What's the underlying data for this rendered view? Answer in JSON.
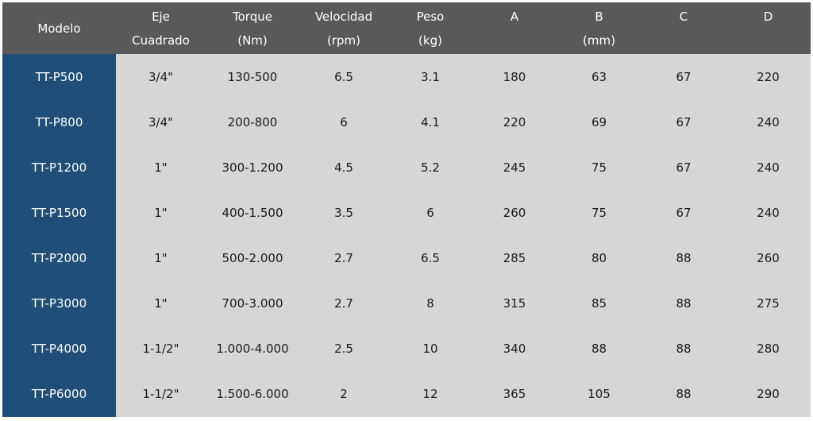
{
  "colors": {
    "header_bg": "#595959",
    "model_bg": "#1f4e79",
    "body_bg": "#d6d6d6"
  },
  "header": {
    "modelo": "Modelo",
    "eje": [
      "Eje",
      "Cuadrado"
    ],
    "torque": [
      "Torque",
      "(Nm)"
    ],
    "velocidad": [
      "Velocidad",
      "(rpm)"
    ],
    "peso": [
      "Peso",
      "(kg)"
    ],
    "a": "A",
    "b": "B",
    "c": "C",
    "d": "D",
    "mm": "(mm)"
  },
  "rows": [
    [
      "TT-P500",
      "3/4\"",
      "130-500",
      "6.5",
      "3.1",
      "180",
      "63",
      "67",
      "220"
    ],
    [
      "TT-P800",
      "3/4\"",
      "200-800",
      "6",
      "4.1",
      "220",
      "69",
      "67",
      "240"
    ],
    [
      "TT-P1200",
      "1\"",
      "300-1.200",
      "4.5",
      "5.2",
      "245",
      "75",
      "67",
      "240"
    ],
    [
      "TT-P1500",
      "1\"",
      "400-1.500",
      "3.5",
      "6",
      "260",
      "75",
      "67",
      "240"
    ],
    [
      "TT-P2000",
      "1\"",
      "500-2.000",
      "2.7",
      "6.5",
      "285",
      "80",
      "88",
      "260"
    ],
    [
      "TT-P3000",
      "1\"",
      "700-3.000",
      "2.7",
      "8",
      "315",
      "85",
      "88",
      "275"
    ],
    [
      "TT-P4000",
      "1-1/2\"",
      "1.000-4.000",
      "2.5",
      "10",
      "340",
      "88",
      "88",
      "280"
    ],
    [
      "TT-P6000",
      "1-1/2\"",
      "1.500-6.000",
      "2",
      "12",
      "365",
      "105",
      "88",
      "290"
    ]
  ]
}
